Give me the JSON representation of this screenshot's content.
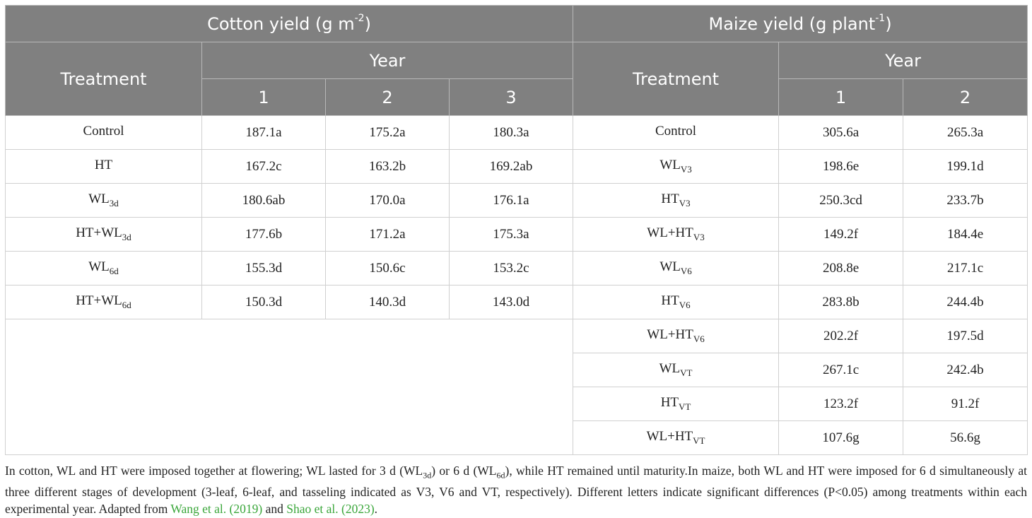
{
  "header": {
    "cotton_title_main": "Cotton yield (g m",
    "cotton_title_sup": "-2",
    "cotton_title_end": ")",
    "maize_title_main": "Maize yield (g plant",
    "maize_title_sup": "-1",
    "maize_title_end": ")",
    "treatment": "Treatment",
    "year": "Year",
    "cotton_years": [
      "1",
      "2",
      "3"
    ],
    "maize_years": [
      "1",
      "2"
    ]
  },
  "cotton_rows": [
    {
      "name": "Control",
      "sub": "",
      "values": [
        "187.1a",
        "175.2a",
        "180.3a"
      ]
    },
    {
      "name": "HT",
      "sub": "",
      "values": [
        "167.2c",
        "163.2b",
        "169.2ab"
      ]
    },
    {
      "name": "WL",
      "sub": "3d",
      "values": [
        "180.6ab",
        "170.0a",
        "176.1a"
      ]
    },
    {
      "name": "HT+WL",
      "sub": "3d",
      "values": [
        "177.6b",
        "171.2a",
        "175.3a"
      ]
    },
    {
      "name": "WL",
      "sub": "6d",
      "values": [
        "155.3d",
        "150.6c",
        "153.2c"
      ]
    },
    {
      "name": "HT+WL",
      "sub": "6d",
      "values": [
        "150.3d",
        "140.3d",
        "143.0d"
      ]
    }
  ],
  "maize_rows": [
    {
      "name": "Control",
      "sub": "",
      "values": [
        "305.6a",
        "265.3a"
      ]
    },
    {
      "name": "WL",
      "sub": "V3",
      "values": [
        "198.6e",
        "199.1d"
      ]
    },
    {
      "name": "HT",
      "sub": "V3",
      "values": [
        "250.3cd",
        "233.7b"
      ]
    },
    {
      "name": "WL+HT",
      "sub": "V3",
      "values": [
        "149.2f",
        "184.4e"
      ]
    },
    {
      "name": "WL",
      "sub": "V6",
      "values": [
        "208.8e",
        "217.1c"
      ]
    },
    {
      "name": "HT",
      "sub": "V6",
      "values": [
        "283.8b",
        "244.4b"
      ]
    },
    {
      "name": "WL+HT",
      "sub": "V6",
      "values": [
        "202.2f",
        "197.5d"
      ]
    },
    {
      "name": "WL",
      "sub": "VT",
      "values": [
        "267.1c",
        "242.4b"
      ]
    },
    {
      "name": "HT",
      "sub": "VT",
      "values": [
        "123.2f",
        "91.2f"
      ]
    },
    {
      "name": "WL+HT",
      "sub": "VT",
      "values": [
        "107.6g",
        "56.6g"
      ]
    }
  ],
  "footnote": {
    "p1": "In cotton, WL and HT were imposed together at flowering; WL lasted for 3 d (WL",
    "p1_sub": "3d",
    "p2": ") or 6 d (WL",
    "p2_sub": "6d",
    "p3": "), while HT remained until maturity.In maize, both WL and HT were imposed for 6 d simultaneously at three different stages of development (3-leaf, 6-leaf, and tasseling indicated as V3, V6 and VT, respectively). Different letters indicate significant differences (P<0.05) among treatments within each experimental year. Adapted from ",
    "link1": "Wang et al. (2019)",
    "p4": " and ",
    "link2": "Shao et al. (2023)",
    "p5": "."
  },
  "colors": {
    "header_bg": "#808080",
    "header_text": "#ffffff",
    "link": "#3aa63a",
    "border": "#d0d0d0"
  }
}
